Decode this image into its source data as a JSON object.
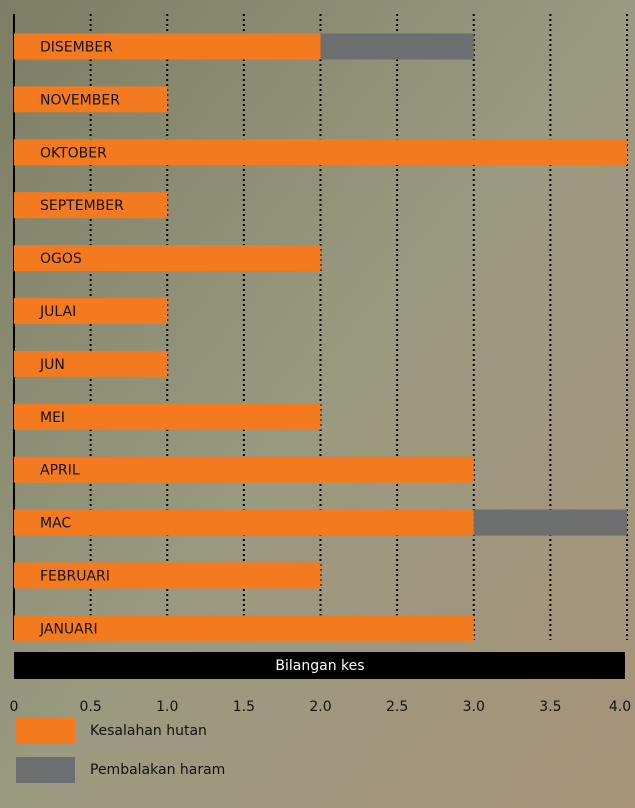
{
  "chart_data": {
    "type": "bar",
    "orientation": "horizontal",
    "stacked": true,
    "x_label": "Bilangan kes",
    "categories": [
      "DISEMBER",
      "NOVEMBER",
      "OKTOBER",
      "SEPTEMBER",
      "OGOS",
      "JULAI",
      "JUN",
      "MEI",
      "APRIL",
      "MAC",
      "FEBRUARI",
      "JANUARI"
    ],
    "series": [
      {
        "name": "Kesalahan hutan",
        "color": "#f47a20",
        "values": [
          2,
          1,
          4,
          1,
          2,
          1,
          1,
          2,
          3,
          3,
          2,
          3
        ]
      },
      {
        "name": "Pembalakan haram",
        "color": "#6d6e70",
        "values": [
          1,
          0,
          0,
          0,
          0,
          0,
          0,
          0,
          0,
          1,
          0,
          0
        ]
      }
    ],
    "xlim": [
      0,
      4
    ],
    "xticks": [
      0,
      0.5,
      {
        "value": 1,
        "label": "1.0"
      },
      1.5,
      {
        "value": 2,
        "label": "2.0"
      },
      2.5,
      {
        "value": 3,
        "label": "3.0"
      },
      3.5,
      {
        "value": 4,
        "label": "4.0"
      }
    ],
    "grid": true,
    "legend": "bottom-left"
  }
}
